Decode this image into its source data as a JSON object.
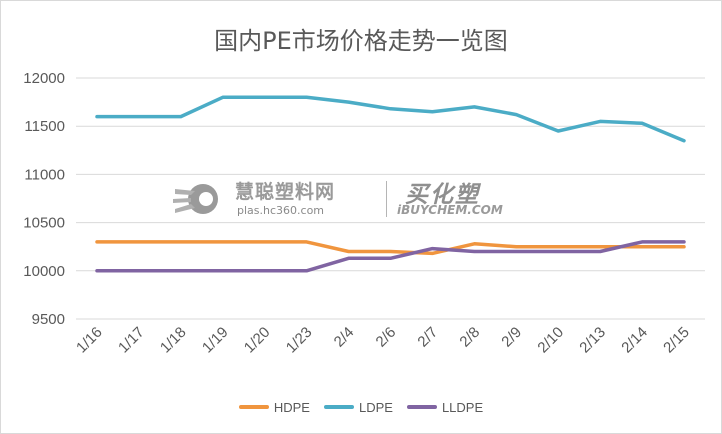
{
  "chart_data": {
    "type": "line",
    "title": "国内PE市场价格走势一览图",
    "categories": [
      "1/16",
      "1/17",
      "1/18",
      "1/19",
      "1/20",
      "1/23",
      "2/4",
      "2/6",
      "2/7",
      "2/8",
      "2/9",
      "2/10",
      "2/13",
      "2/14",
      "2/15"
    ],
    "yticks": [
      "9500",
      "10000",
      "10500",
      "11000",
      "11500",
      "12000"
    ],
    "ylim": [
      9500,
      12000
    ],
    "grid": true,
    "legend_position": "bottom",
    "series": [
      {
        "name": "HDPE",
        "color": "#F0953E",
        "values": [
          10300,
          10300,
          10300,
          10300,
          10300,
          10300,
          10200,
          10200,
          10180,
          10280,
          10250,
          10250,
          10250,
          10250,
          10250
        ]
      },
      {
        "name": "LDPE",
        "color": "#4BACC6",
        "values": [
          11600,
          11600,
          11600,
          11800,
          11800,
          11800,
          11750,
          11680,
          11650,
          11700,
          11620,
          11450,
          11550,
          11530,
          11350
        ]
      },
      {
        "name": "LLDPE",
        "color": "#8064A2",
        "values": [
          10000,
          10000,
          10000,
          10000,
          10000,
          10000,
          10130,
          10130,
          10230,
          10200,
          10200,
          10200,
          10200,
          10300,
          10300
        ]
      }
    ]
  },
  "watermark": {
    "name": "慧聪塑料网",
    "url": "plas.hc360.com",
    "name2": "买化塑",
    "url2": "iBUYCHEM.COM"
  }
}
